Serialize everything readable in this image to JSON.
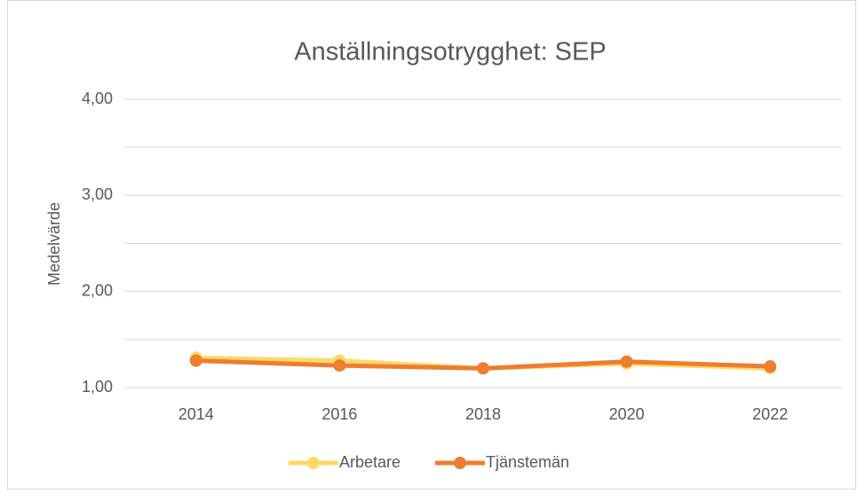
{
  "chart_data": {
    "type": "line",
    "title": "Anställningsotrygghet: SEP",
    "y_label": "Medelvärde",
    "categories": [
      "2014",
      "2016",
      "2018",
      "2020",
      "2022"
    ],
    "series": [
      {
        "name": "Arbetare",
        "color": "#ffd966",
        "values": [
          1.31,
          1.28,
          1.2,
          1.25,
          1.2
        ]
      },
      {
        "name": "Tjänstemän",
        "color": "#ed7d31",
        "values": [
          1.28,
          1.23,
          1.2,
          1.27,
          1.22
        ]
      }
    ],
    "ylim": [
      1,
      4
    ],
    "yticks": [
      {
        "value": 1,
        "label": "1,00"
      },
      {
        "value": 2,
        "label": "2,00"
      },
      {
        "value": 3,
        "label": "3,00"
      },
      {
        "value": 4,
        "label": "4,00"
      }
    ],
    "minor_yticks": [
      1.5,
      2.5,
      3.5
    ],
    "grid": true,
    "legend": "bottom"
  }
}
